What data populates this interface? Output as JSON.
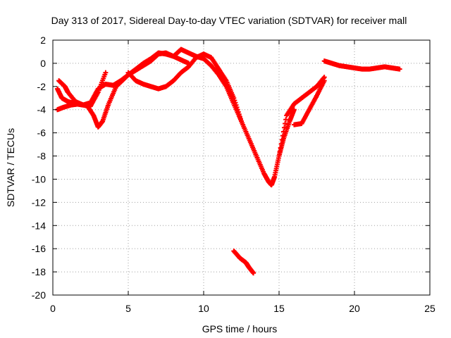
{
  "chart_data": {
    "type": "scatter",
    "title": "Day 313 of 2017, Sidereal Day-to-day VTEC variation (SDTVAR) for receiver mall",
    "xlabel": "GPS time / hours",
    "ylabel": "SDTVAR / TECUs",
    "xlim": [
      0,
      25
    ],
    "ylim": [
      -20,
      2
    ],
    "xticks": [
      0,
      5,
      10,
      15,
      20,
      25
    ],
    "yticks": [
      2,
      0,
      -2,
      -4,
      -6,
      -8,
      -10,
      -12,
      -14,
      -16,
      -18,
      -20
    ],
    "grid": true,
    "marker": "+",
    "series": [
      {
        "name": "arc-1",
        "color": "#ff0000",
        "x": [
          0.3,
          0.6,
          1.0,
          1.5,
          2.0,
          2.5,
          3.0,
          3.5,
          4.0,
          4.5,
          5.0,
          5.5,
          6.0,
          6.5,
          7.0,
          7.5,
          8.0,
          8.5,
          9.0
        ],
        "y": [
          -2.2,
          -3.0,
          -3.3,
          -3.5,
          -3.6,
          -3.4,
          -2.2,
          -1.8,
          -1.9,
          -1.5,
          -1.0,
          -0.5,
          0.0,
          0.4,
          0.9,
          0.8,
          0.6,
          0.3,
          0.0
        ]
      },
      {
        "name": "arc-2",
        "color": "#ff0000",
        "x": [
          0.3,
          0.7,
          1.2,
          1.8,
          2.3,
          2.7,
          3.0,
          3.3,
          3.7,
          4.2,
          4.6,
          5.0,
          5.5,
          6.0,
          6.5,
          7.0,
          7.5,
          8.0,
          8.5,
          9.0,
          9.5,
          10.0,
          10.5,
          11.0,
          11.5,
          12.0,
          12.5,
          13.0,
          13.5,
          14.0,
          14.3,
          14.5,
          14.7,
          15.0,
          15.3,
          15.7,
          16.0
        ],
        "y": [
          -4.0,
          -3.8,
          -3.6,
          -3.5,
          -3.7,
          -4.5,
          -5.5,
          -5.0,
          -3.5,
          -2.0,
          -1.5,
          -1.0,
          -0.6,
          -0.2,
          0.2,
          0.8,
          0.9,
          0.6,
          1.2,
          0.9,
          0.6,
          0.4,
          -0.2,
          -1.0,
          -2.0,
          -3.5,
          -5.0,
          -6.5,
          -8.0,
          -9.5,
          -10.2,
          -10.5,
          -9.8,
          -8.0,
          -6.5,
          -5.0,
          -4.0
        ]
      },
      {
        "name": "arc-3",
        "color": "#ff0000",
        "x": [
          0.4,
          0.8,
          1.0,
          1.5,
          2.0,
          2.5,
          3.0,
          3.5
        ],
        "y": [
          -1.5,
          -2.0,
          -2.5,
          -3.3,
          -3.6,
          -3.7,
          -2.5,
          -0.8
        ]
      },
      {
        "name": "arc-4",
        "color": "#ff0000",
        "x": [
          5.0,
          5.5,
          6.0,
          6.5,
          7.0,
          7.5,
          8.0,
          8.5,
          9.0,
          9.5,
          10.0,
          10.5,
          11.0,
          11.5,
          12.0,
          12.5
        ],
        "y": [
          -0.8,
          -1.5,
          -1.8,
          -2.0,
          -2.2,
          -2.0,
          -1.5,
          -0.8,
          -0.3,
          0.5,
          0.8,
          0.5,
          -0.5,
          -1.5,
          -3.0,
          -5.0
        ]
      },
      {
        "name": "arc-5",
        "color": "#ff0000",
        "x": [
          12.0,
          12.4,
          12.8,
          13.0,
          13.3
        ],
        "y": [
          -16.2,
          -16.8,
          -17.2,
          -17.6,
          -18.1
        ]
      },
      {
        "name": "arc-6",
        "color": "#ff0000",
        "x": [
          15.0,
          15.5,
          16.0,
          16.5,
          17.0,
          17.5,
          18.0
        ],
        "y": [
          -8.0,
          -4.5,
          -3.5,
          -3.0,
          -2.5,
          -2.0,
          -1.2
        ]
      },
      {
        "name": "arc-7",
        "color": "#ff0000",
        "x": [
          16.0,
          16.5,
          17.0,
          17.5,
          18.0
        ],
        "y": [
          -5.3,
          -5.2,
          -4.0,
          -2.8,
          -1.5
        ]
      },
      {
        "name": "arc-8",
        "color": "#ff0000",
        "x": [
          18.0,
          18.5,
          19.0,
          19.5,
          20.0,
          20.5,
          21.0,
          21.5,
          22.0,
          22.5,
          23.0
        ],
        "y": [
          0.2,
          0.0,
          -0.2,
          -0.3,
          -0.4,
          -0.5,
          -0.5,
          -0.4,
          -0.3,
          -0.4,
          -0.5
        ]
      }
    ]
  }
}
